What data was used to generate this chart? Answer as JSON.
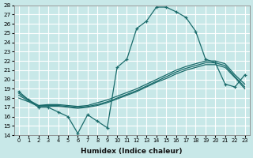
{
  "xlabel": "Humidex (Indice chaleur)",
  "background_color": "#c8e8e8",
  "grid_color": "#ffffff",
  "line_color": "#1a6b6b",
  "xlim": [
    -0.5,
    23.5
  ],
  "ylim": [
    14,
    28
  ],
  "xticks": [
    0,
    1,
    2,
    3,
    4,
    5,
    6,
    7,
    8,
    9,
    10,
    11,
    12,
    13,
    14,
    15,
    16,
    17,
    18,
    19,
    20,
    21,
    22,
    23
  ],
  "yticks": [
    14,
    15,
    16,
    17,
    18,
    19,
    20,
    21,
    22,
    23,
    24,
    25,
    26,
    27,
    28
  ],
  "line1_x": [
    0,
    1,
    2,
    3,
    4,
    5,
    6,
    7,
    8,
    9,
    10,
    11,
    12,
    13,
    14,
    15,
    16,
    17,
    18,
    19,
    20,
    21,
    22,
    23
  ],
  "line1_y": [
    18.7,
    17.8,
    17.0,
    17.0,
    16.5,
    16.0,
    14.2,
    16.2,
    15.5,
    14.8,
    21.3,
    22.2,
    25.5,
    26.3,
    27.8,
    27.8,
    27.3,
    26.7,
    25.2,
    22.2,
    21.8,
    19.5,
    19.2,
    20.5
  ],
  "line2_x": [
    0,
    1,
    2,
    3,
    4,
    5,
    6,
    7,
    8,
    9,
    10,
    11,
    12,
    13,
    14,
    15,
    16,
    17,
    18,
    19,
    20,
    21,
    22,
    23
  ],
  "line2_y": [
    18.5,
    17.8,
    17.2,
    17.3,
    17.3,
    17.2,
    17.1,
    17.2,
    17.5,
    17.8,
    18.2,
    18.6,
    19.0,
    19.5,
    20.0,
    20.5,
    21.0,
    21.4,
    21.7,
    22.0,
    22.0,
    21.7,
    20.5,
    19.5
  ],
  "line3_x": [
    0,
    1,
    2,
    3,
    4,
    5,
    6,
    7,
    8,
    9,
    10,
    11,
    12,
    13,
    14,
    15,
    16,
    17,
    18,
    19,
    20,
    21,
    22,
    23
  ],
  "line3_y": [
    18.3,
    17.7,
    17.2,
    17.2,
    17.2,
    17.1,
    17.0,
    17.1,
    17.3,
    17.6,
    18.0,
    18.4,
    18.8,
    19.3,
    19.8,
    20.3,
    20.8,
    21.2,
    21.5,
    21.8,
    21.8,
    21.5,
    20.3,
    19.2
  ],
  "line4_x": [
    0,
    1,
    2,
    3,
    4,
    5,
    6,
    7,
    8,
    9,
    10,
    11,
    12,
    13,
    14,
    15,
    16,
    17,
    18,
    19,
    20,
    21,
    22,
    23
  ],
  "line4_y": [
    18.0,
    17.6,
    17.1,
    17.1,
    17.1,
    17.0,
    16.9,
    17.0,
    17.2,
    17.5,
    17.9,
    18.3,
    18.7,
    19.2,
    19.7,
    20.1,
    20.6,
    21.0,
    21.3,
    21.6,
    21.6,
    21.3,
    20.2,
    19.0
  ]
}
